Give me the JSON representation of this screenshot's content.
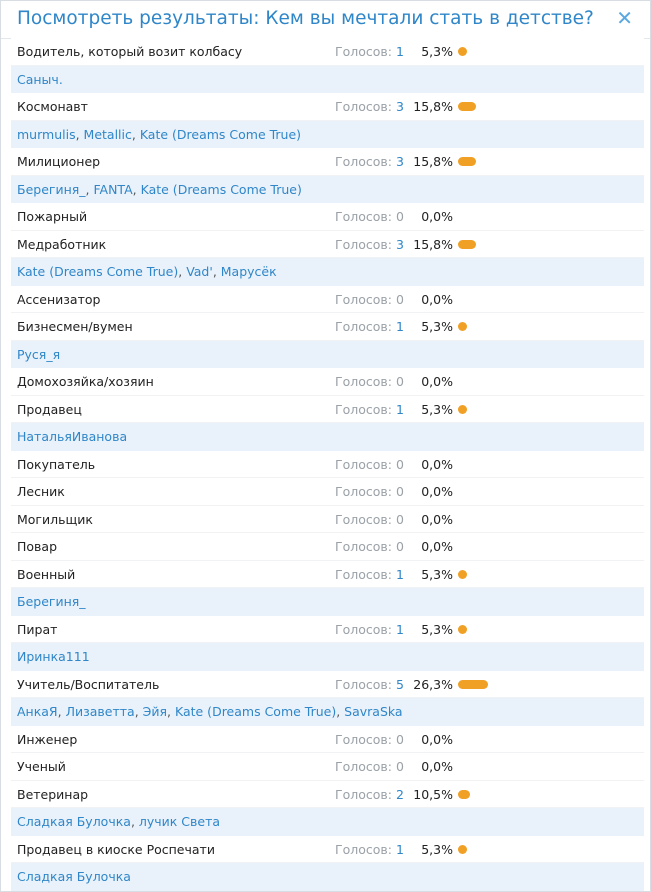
{
  "header": {
    "title": "Посмотреть результаты: Кем вы мечтали стать в детстве?",
    "close_icon": "close-icon",
    "colors": {
      "accent": "#2f86c8",
      "bar": "#f0a024",
      "voters_bg": "#e9f2fb"
    }
  },
  "votes_label": "Голосов:",
  "answers": [
    {
      "label": "Водитель, который возит колбасу",
      "votes": "1",
      "percent": "5,3%",
      "share": 5.3,
      "voters": [
        "Саныч."
      ]
    },
    {
      "label": "Космонавт",
      "votes": "3",
      "percent": "15,8%",
      "share": 15.8,
      "voters": [
        "murmulis",
        "Metallic",
        "Kate (Dreams Come True)"
      ]
    },
    {
      "label": "Милиционер",
      "votes": "3",
      "percent": "15,8%",
      "share": 15.8,
      "voters": [
        "Берегиня_",
        "FANTA",
        "Kate (Dreams Come True)"
      ]
    },
    {
      "label": "Пожарный",
      "votes": "0",
      "percent": "0,0%",
      "share": 0,
      "voters": []
    },
    {
      "label": "Медработник",
      "votes": "3",
      "percent": "15,8%",
      "share": 15.8,
      "voters": [
        "Kate (Dreams Come True)",
        "Vad'",
        "Марусёк"
      ]
    },
    {
      "label": "Ассенизатор",
      "votes": "0",
      "percent": "0,0%",
      "share": 0,
      "voters": []
    },
    {
      "label": "Бизнесмен/вумен",
      "votes": "1",
      "percent": "5,3%",
      "share": 5.3,
      "voters": [
        "Руся_я"
      ]
    },
    {
      "label": "Домохозяйка/хозяин",
      "votes": "0",
      "percent": "0,0%",
      "share": 0,
      "voters": []
    },
    {
      "label": "Продавец",
      "votes": "1",
      "percent": "5,3%",
      "share": 5.3,
      "voters": [
        "НатальяИванова"
      ]
    },
    {
      "label": "Покупатель",
      "votes": "0",
      "percent": "0,0%",
      "share": 0,
      "voters": []
    },
    {
      "label": "Лесник",
      "votes": "0",
      "percent": "0,0%",
      "share": 0,
      "voters": []
    },
    {
      "label": "Могильщик",
      "votes": "0",
      "percent": "0,0%",
      "share": 0,
      "voters": []
    },
    {
      "label": "Повар",
      "votes": "0",
      "percent": "0,0%",
      "share": 0,
      "voters": []
    },
    {
      "label": "Военный",
      "votes": "1",
      "percent": "5,3%",
      "share": 5.3,
      "voters": [
        "Берегиня_"
      ]
    },
    {
      "label": "Пират",
      "votes": "1",
      "percent": "5,3%",
      "share": 5.3,
      "voters": [
        "Иринка111"
      ]
    },
    {
      "label": "Учитель/Воспитатель",
      "votes": "5",
      "percent": "26,3%",
      "share": 26.3,
      "voters": [
        "АнкаЯ",
        "Лизаветта",
        "Эйя",
        "Kate (Dreams Come True)",
        "SavraSka"
      ]
    },
    {
      "label": "Инженер",
      "votes": "0",
      "percent": "0,0%",
      "share": 0,
      "voters": []
    },
    {
      "label": "Ученый",
      "votes": "0",
      "percent": "0,0%",
      "share": 0,
      "voters": []
    },
    {
      "label": "Ветеринар",
      "votes": "2",
      "percent": "10,5%",
      "share": 10.5,
      "voters": [
        "Сладкая Булочка",
        "лучик Света"
      ]
    },
    {
      "label": "Продавец в киоске Роспечати",
      "votes": "1",
      "percent": "5,3%",
      "share": 5.3,
      "voters": [
        "Сладкая Булочка"
      ]
    }
  ]
}
